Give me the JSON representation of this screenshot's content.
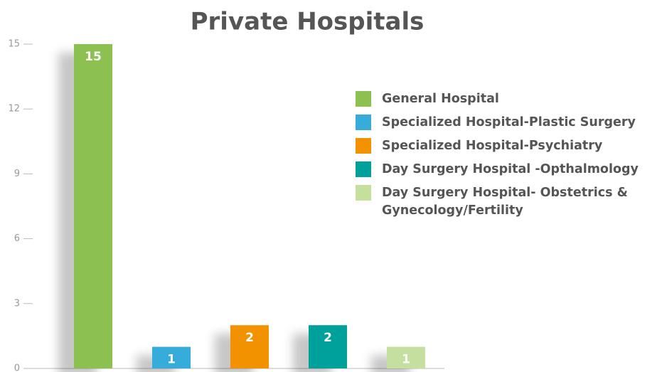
{
  "chart_data": {
    "type": "bar",
    "title": "Private Hospitals",
    "series": [
      {
        "name": "General Hospital",
        "color": "#8cc152",
        "values": [
          15
        ]
      },
      {
        "name": "Specialized Hospital-Plastic Surgery",
        "color": "#35acd9",
        "values": [
          1
        ]
      },
      {
        "name": "Specialized Hospital-Psychiatry",
        "color": "#f39200",
        "values": [
          2
        ]
      },
      {
        "name": "Day Surgery Hospital -Opthalmology",
        "color": "#00a19a",
        "values": [
          2
        ]
      },
      {
        "name": "Day Surgery Hospital- Obstetrics & Gynecology/Fertility",
        "color": "#c5df9f",
        "values": [
          1
        ]
      }
    ],
    "ylim": [
      0,
      15
    ],
    "yticks": [
      0,
      3,
      6,
      9,
      12,
      15
    ],
    "legend": "right"
  }
}
